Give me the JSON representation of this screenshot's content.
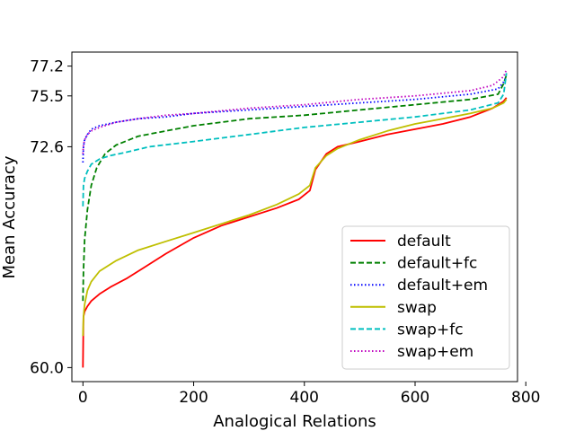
{
  "chart_data": {
    "type": "line",
    "title": "",
    "xlabel": "Analogical Relations",
    "ylabel": "Mean Accuracy",
    "xlim": [
      -20,
      785
    ],
    "ylim": [
      59.2,
      78.0
    ],
    "xticks": [
      0,
      200,
      400,
      600,
      800
    ],
    "xtick_labels": [
      "0",
      "200",
      "400",
      "600",
      "800"
    ],
    "yticks": [
      60.0,
      72.6,
      75.5,
      77.2
    ],
    "ytick_labels": [
      "60.0",
      "72.6",
      "75.5",
      "77.2"
    ],
    "grid": false,
    "legend_position": "lower-right",
    "series": [
      {
        "name": "default",
        "color": "#ff0000",
        "dash": "solid",
        "x": [
          0,
          1,
          3,
          8,
          15,
          30,
          50,
          80,
          110,
          150,
          200,
          250,
          300,
          350,
          390,
          410,
          420,
          440,
          460,
          500,
          550,
          600,
          650,
          700,
          740,
          760,
          765
        ],
        "y": [
          60.0,
          62.9,
          63.2,
          63.5,
          63.8,
          64.2,
          64.6,
          65.1,
          65.7,
          66.5,
          67.4,
          68.1,
          68.6,
          69.1,
          69.6,
          70.1,
          71.3,
          72.2,
          72.6,
          72.9,
          73.3,
          73.6,
          73.9,
          74.3,
          74.8,
          75.2,
          75.4
        ]
      },
      {
        "name": "default+fc",
        "color": "#008000",
        "dash": "dashed",
        "x": [
          0,
          1,
          3,
          8,
          15,
          25,
          40,
          60,
          100,
          150,
          200,
          250,
          300,
          400,
          500,
          600,
          700,
          750,
          760,
          765
        ],
        "y": [
          63.8,
          65.5,
          67.3,
          69.0,
          70.4,
          71.4,
          72.2,
          72.7,
          73.2,
          73.5,
          73.8,
          74.0,
          74.2,
          74.4,
          74.7,
          75.0,
          75.3,
          75.6,
          76.2,
          76.7
        ]
      },
      {
        "name": "default+em",
        "color": "#0000ff",
        "dash": "dotted",
        "x": [
          0,
          1,
          3,
          8,
          15,
          30,
          60,
          100,
          150,
          200,
          300,
          400,
          500,
          600,
          700,
          750,
          760,
          765
        ],
        "y": [
          71.7,
          72.6,
          73.0,
          73.3,
          73.6,
          73.8,
          74.0,
          74.2,
          74.3,
          74.5,
          74.7,
          74.9,
          75.1,
          75.3,
          75.6,
          75.9,
          76.3,
          76.6
        ]
      },
      {
        "name": "swap",
        "color": "#bfbf00",
        "dash": "solid",
        "x": [
          0,
          1,
          3,
          8,
          15,
          30,
          60,
          100,
          150,
          200,
          250,
          300,
          350,
          390,
          410,
          420,
          440,
          460,
          500,
          550,
          600,
          650,
          700,
          740,
          760,
          765
        ],
        "y": [
          61.8,
          62.9,
          63.6,
          64.4,
          64.9,
          65.5,
          66.1,
          66.7,
          67.2,
          67.7,
          68.2,
          68.7,
          69.3,
          69.9,
          70.4,
          71.4,
          72.1,
          72.5,
          73.0,
          73.5,
          73.9,
          74.2,
          74.5,
          74.8,
          75.1,
          75.3
        ]
      },
      {
        "name": "swap+fc",
        "color": "#00bfbf",
        "dash": "dashed",
        "x": [
          0,
          1,
          3,
          8,
          15,
          30,
          50,
          80,
          120,
          200,
          300,
          400,
          500,
          600,
          700,
          750,
          760,
          765
        ],
        "y": [
          69.2,
          70.4,
          70.8,
          71.2,
          71.6,
          71.9,
          72.1,
          72.3,
          72.6,
          72.9,
          73.3,
          73.7,
          74.0,
          74.3,
          74.7,
          75.1,
          75.6,
          76.8
        ]
      },
      {
        "name": "swap+em",
        "color": "#bf00bf",
        "dash": "dotted",
        "x": [
          0,
          1,
          3,
          8,
          15,
          30,
          60,
          100,
          150,
          200,
          300,
          400,
          500,
          600,
          700,
          740,
          760,
          765
        ],
        "y": [
          72.2,
          72.7,
          73.0,
          73.3,
          73.5,
          73.7,
          74.0,
          74.2,
          74.4,
          74.5,
          74.8,
          75.0,
          75.3,
          75.5,
          75.8,
          76.1,
          76.6,
          77.0
        ]
      }
    ]
  }
}
